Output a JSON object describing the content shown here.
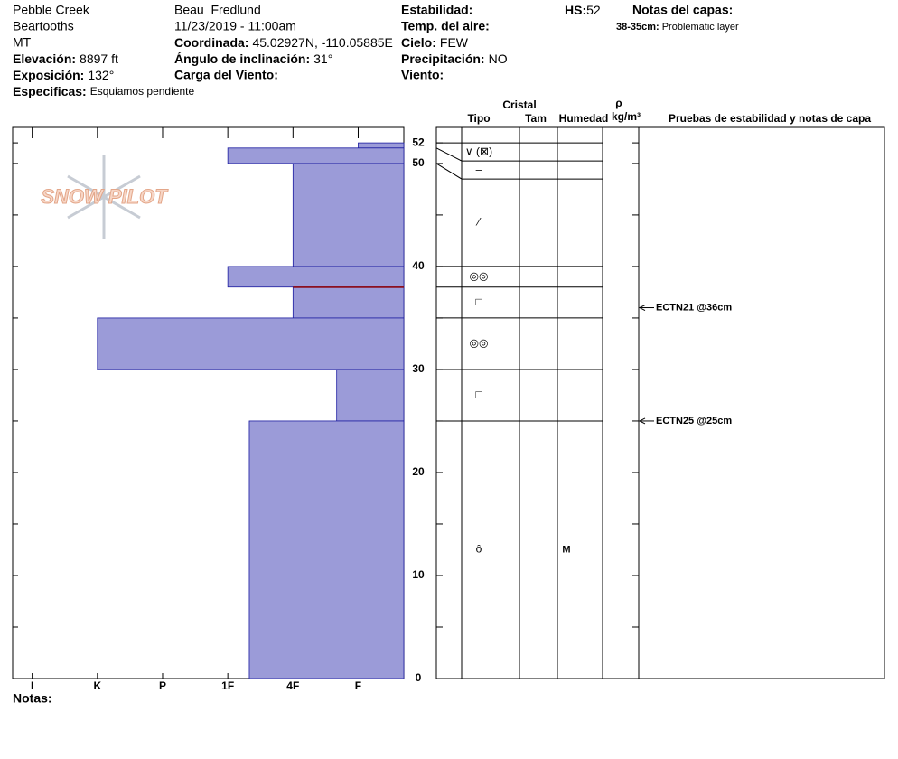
{
  "header": {
    "location": "Pebble Creek",
    "range": "Beartooths",
    "state": "MT",
    "elevation": {
      "label": "Elevación:",
      "value": "8897 ft"
    },
    "aspect": {
      "label": "Exposición:",
      "value": "132°"
    },
    "specifics": {
      "label": "Especificas:",
      "value": "Esquiamos pendiente"
    },
    "observer": "Beau  Fredlund",
    "datetime": "11/23/2019 - 11:00am",
    "coordinates": {
      "label": "Coordinada:",
      "value": "45.02927N, -110.05885E"
    },
    "slope": {
      "label": "Ángulo de inclinación:",
      "value": "31°"
    },
    "wind_loading": {
      "label": "Carga del Viento:"
    },
    "stability": {
      "label": "Estabilidad:"
    },
    "air_temp": {
      "label": "Temp. del aire:"
    },
    "sky": {
      "label": "Cielo:",
      "value": "FEW"
    },
    "precipitation": {
      "label": "Precipitación:",
      "value": "NO"
    },
    "wind": {
      "label": "Viento:"
    },
    "hs": {
      "label": "HS:",
      "value": 52
    },
    "layer_notes": {
      "title": "Notas del capas:",
      "items": [
        {
          "range": "38-35cm:",
          "note": "Problematic layer"
        }
      ]
    },
    "notes_label": "Notas:",
    "logo": "SNOW PILOT"
  },
  "chart_data": {
    "type": "snow_profile",
    "ylim": [
      0,
      53.5
    ],
    "yticks": [
      0,
      10,
      20,
      30,
      40,
      50,
      52
    ],
    "yminor_ticks": [
      5,
      15,
      25,
      35,
      45
    ],
    "xlim": [
      6.3,
      0.3
    ],
    "xticks": [
      {
        "value": 6,
        "label": "I"
      },
      {
        "value": 5,
        "label": "K"
      },
      {
        "value": 4,
        "label": "P"
      },
      {
        "value": 3,
        "label": "1F"
      },
      {
        "value": 2,
        "label": "4F"
      },
      {
        "value": 1,
        "label": "F"
      }
    ],
    "color": "#9b9bd8",
    "columns": {
      "crystal": "Cristal",
      "type": "Tipo",
      "size": "Tam",
      "moisture": "Humedad",
      "density_symbol": "ρ",
      "density_unit": "kg/m³",
      "tests": "Pruebas de estabilidad y notas de capa"
    },
    "layers": [
      {
        "top": 52,
        "bottom": 51.5,
        "hardness": 1,
        "grain": "∨ (⊠)"
      },
      {
        "top": 51.5,
        "bottom": 50,
        "hardness": 3,
        "grain": "–"
      },
      {
        "top": 50,
        "bottom": 40,
        "hardness": 2,
        "grain": "⁄"
      },
      {
        "top": 40,
        "bottom": 38,
        "hardness": 3,
        "grain": "◎◎"
      },
      {
        "top": 38,
        "bottom": 35,
        "hardness": 2,
        "grain": "□"
      },
      {
        "top": 35,
        "bottom": 30,
        "hardness": 5,
        "grain": "◎◎"
      },
      {
        "top": 30,
        "bottom": 25,
        "hardness": 1.33,
        "grain": "□"
      },
      {
        "top": 25,
        "bottom": 0,
        "hardness": 2.67,
        "grain": "ȏ",
        "moisture": "M"
      }
    ],
    "tests": [
      {
        "label": "ECTN21 @36cm",
        "height": 36
      },
      {
        "label": "ECTN25 @25cm",
        "height": 25
      }
    ]
  }
}
